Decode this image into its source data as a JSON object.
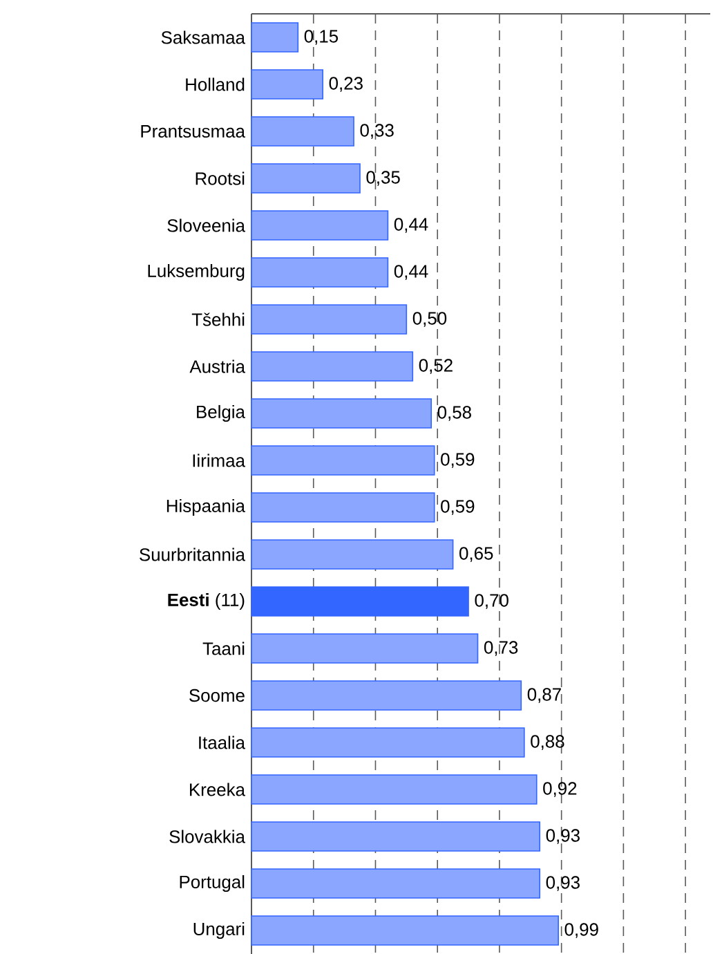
{
  "chart_data": {
    "type": "bar",
    "orientation": "horizontal",
    "categories": [
      "Saksamaa",
      "Holland",
      "Prantsusmaa",
      "Rootsi",
      "Sloveenia",
      "Luksemburg",
      "Tšehhi",
      "Austria",
      "Belgia",
      "Iirimaa",
      "Hispaania",
      "Suurbritannia",
      "**Eesti** (11)",
      "Taani",
      "Soome",
      "Itaalia",
      "Kreeka",
      "Slovakkia",
      "Portugal",
      "Ungari"
    ],
    "values": [
      0.15,
      0.23,
      0.33,
      0.35,
      0.44,
      0.44,
      0.5,
      0.52,
      0.58,
      0.59,
      0.59,
      0.65,
      0.7,
      0.73,
      0.87,
      0.88,
      0.92,
      0.93,
      0.93,
      0.99
    ],
    "value_labels": [
      "0,15",
      "0,23",
      "0,33",
      "0,35",
      "0,44",
      "0,44",
      "0,50",
      "0,52",
      "0,58",
      "0,59",
      "0,59",
      "0,65",
      "0,70",
      "0,73",
      "0,87",
      "0,88",
      "0,92",
      "0,93",
      "0,93",
      "0,99"
    ],
    "colors": [
      "#8aa6ff",
      "#8aa6ff",
      "#8aa6ff",
      "#8aa6ff",
      "#8aa6ff",
      "#8aa6ff",
      "#8aa6ff",
      "#8aa6ff",
      "#8aa6ff",
      "#8aa6ff",
      "#8aa6ff",
      "#8aa6ff",
      "#3366ff",
      "#8aa6ff",
      "#8aa6ff",
      "#8aa6ff",
      "#8aa6ff",
      "#8aa6ff",
      "#8aa6ff",
      "#8aa6ff"
    ],
    "xlim": [
      0,
      1.48
    ],
    "xticks": [
      {
        "value": 0.2,
        "label": null
      },
      {
        "value": 0.4,
        "label": null
      },
      {
        "value": 0.6,
        "label": null
      },
      {
        "value": 0.8,
        "label": null
      },
      {
        "value": 1.0,
        "label": null
      },
      {
        "value": 1.2,
        "label": null
      },
      {
        "value": 1.4,
        "label": null
      }
    ],
    "grid": "x"
  }
}
